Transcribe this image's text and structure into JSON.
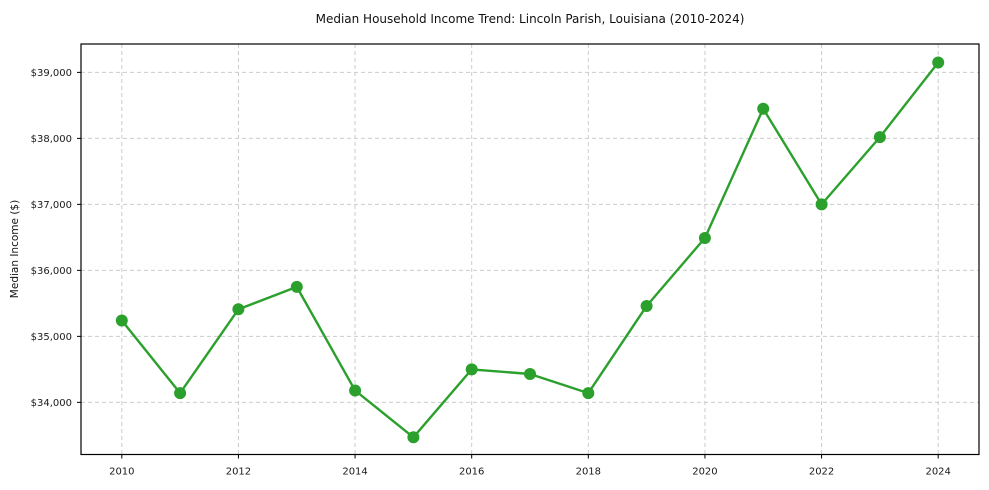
{
  "chart_data": {
    "type": "line",
    "title": "Median Household Income Trend: Lincoln Parish, Louisiana (2010-2024)",
    "xlabel": "",
    "ylabel": "Median Income ($)",
    "series": [
      {
        "name": "Median Household Income",
        "x": [
          2010,
          2011,
          2012,
          2013,
          2014,
          2015,
          2016,
          2017,
          2018,
          2019,
          2020,
          2021,
          2022,
          2023,
          2024
        ],
        "values": [
          35240,
          34140,
          35410,
          35750,
          34180,
          33470,
          34500,
          34430,
          34140,
          35460,
          36490,
          38450,
          37000,
          38020,
          39150
        ]
      }
    ],
    "x_ticks": [
      {
        "value": 2010,
        "label": "2010"
      },
      {
        "value": 2012,
        "label": "2012"
      },
      {
        "value": 2014,
        "label": "2014"
      },
      {
        "value": 2016,
        "label": "2016"
      },
      {
        "value": 2018,
        "label": "2018"
      },
      {
        "value": 2020,
        "label": "2020"
      },
      {
        "value": 2022,
        "label": "2022"
      },
      {
        "value": 2024,
        "label": "2024"
      }
    ],
    "y_ticks": [
      {
        "value": 34000,
        "label": "$34,000"
      },
      {
        "value": 35000,
        "label": "$35,000"
      },
      {
        "value": 36000,
        "label": "$36,000"
      },
      {
        "value": 37000,
        "label": "$37,000"
      },
      {
        "value": 38000,
        "label": "$38,000"
      },
      {
        "value": 39000,
        "label": "$39,000"
      }
    ],
    "xlim": [
      2009.3,
      2024.7
    ],
    "ylim": [
      33210,
      39430
    ],
    "grid": true,
    "legend": "none",
    "line_color": "#2ca02c",
    "marker": "circle",
    "background_color": "#ffffff"
  }
}
